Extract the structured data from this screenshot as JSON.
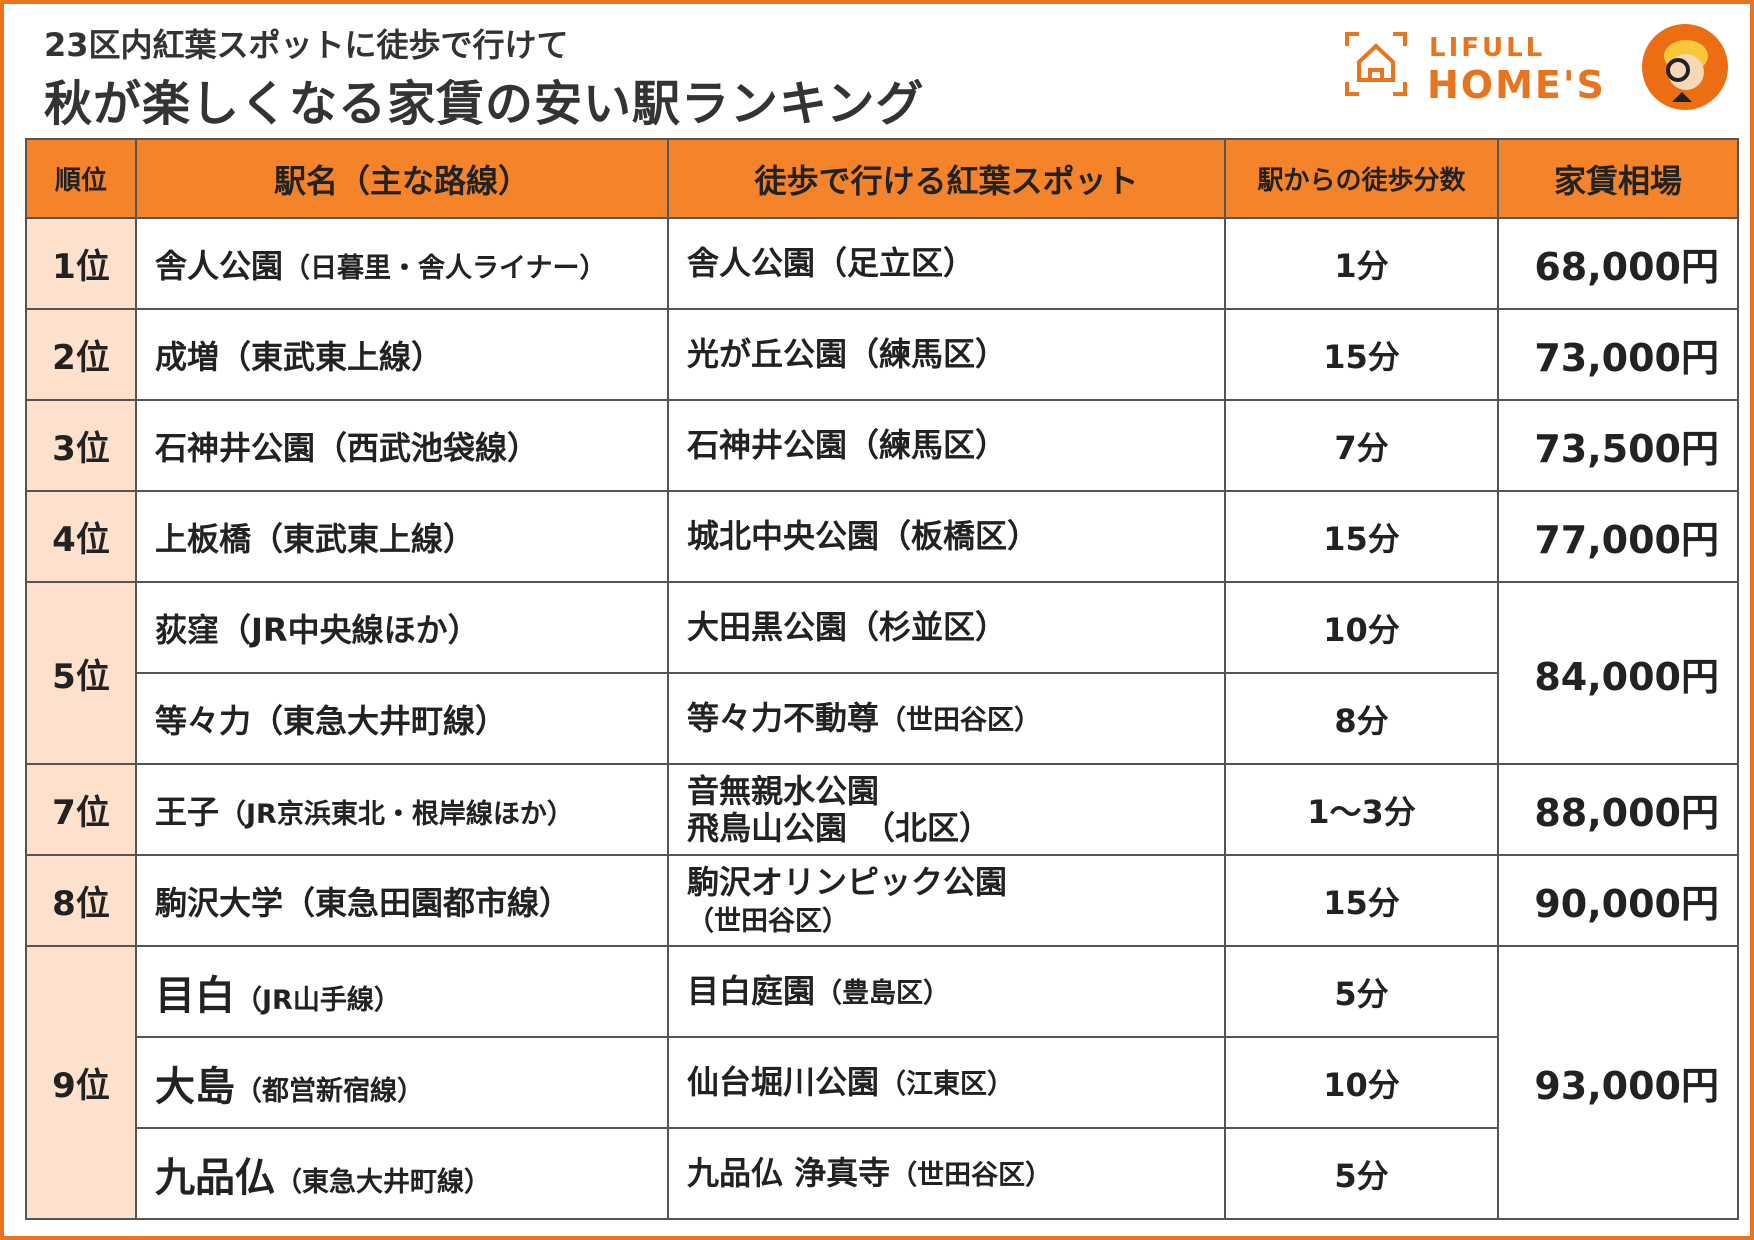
{
  "title_line1": "23区内紅葉スポットに徒歩で行けて",
  "title_line2": "秋が楽しくなる家賃の安い駅ランキング",
  "logo": {
    "line1": "LIFULL",
    "line2": "HOME'S",
    "brand_color": "#e8741e"
  },
  "headers": [
    "順位",
    "駅名（主な路線）",
    "徒歩で行ける紅葉スポット",
    "駅からの徒歩分数",
    "家賃相場"
  ],
  "rows": [
    {
      "rank": "1位",
      "station": "舎人公園",
      "line": "（日暮里・舎人ライナー）",
      "spot": "舎人公園（足立区）",
      "spot_sub": "",
      "walk": "1分",
      "rent": "68,000円"
    },
    {
      "rank": "2位",
      "station": "成増",
      "line": "（東武東上線）",
      "spot": "光が丘公園（練馬区）",
      "spot_sub": "",
      "walk": "15分",
      "rent": "73,000円"
    },
    {
      "rank": "3位",
      "station": "石神井公園",
      "line": "（西武池袋線）",
      "spot": "石神井公園（練馬区）",
      "spot_sub": "",
      "walk": "7分",
      "rent": "73,500円"
    },
    {
      "rank": "4位",
      "station": "上板橋",
      "line": "（東武東上線）",
      "spot": "城北中央公園（板橋区）",
      "spot_sub": "",
      "walk": "15分",
      "rent": "77,000円"
    },
    {
      "rank": "5位",
      "station": "荻窪",
      "line": "（JR中央線ほか）",
      "spot": "大田黒公園（杉並区）",
      "spot_sub": "",
      "walk": "10分",
      "rent": "84,000円"
    },
    {
      "rank": "",
      "station": "等々力",
      "line": "（東急大井町線）",
      "spot": "等々力不動尊",
      "spot_sub": "（世田谷区）",
      "walk": "8分",
      "rent": ""
    },
    {
      "rank": "7位",
      "station": "王子",
      "line": "（JR京浜東北・根岸線ほか）",
      "spot": "音無親水公園",
      "spot_sub": "飛鳥山公園　（北区）",
      "walk": "1～3分",
      "rent": "88,000円"
    },
    {
      "rank": "8位",
      "station": "駒沢大学",
      "line": "（東急田園都市線）",
      "spot": "駒沢オリンピック公園",
      "spot_sub": "（世田谷区）",
      "walk": "15分",
      "rent": "90,000円"
    },
    {
      "rank": "9位",
      "station": "目白",
      "line": "（JR山手線）",
      "spot": "目白庭園",
      "spot_sub": "（豊島区）",
      "walk": "5分",
      "rent": "93,000円"
    },
    {
      "rank": "",
      "station": "大島",
      "line": "（都営新宿線）",
      "spot": "仙台堀川公園",
      "spot_sub": "（江東区）",
      "walk": "10分",
      "rent": ""
    },
    {
      "rank": "",
      "station": "九品仏",
      "line": "（東急大井町線）",
      "spot": "九品仏 浄真寺",
      "spot_sub": "（世田谷区）",
      "walk": "5分",
      "rent": ""
    }
  ]
}
